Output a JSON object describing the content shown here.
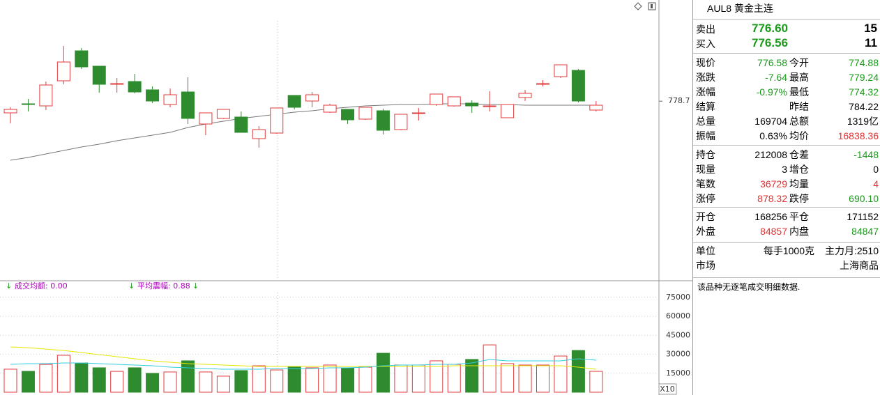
{
  "chart_data": [
    {
      "type": "candlestick",
      "ylim": [
        715,
        815
      ],
      "yticks": [
        778.7
      ],
      "up_color": "#e03a3a",
      "down_color": "#2e8b2e",
      "series": {
        "open": [
          774.5,
          777.75,
          777,
          786,
          796.75,
          791.25,
          784.75,
          785.75,
          782.75,
          777.5,
          782,
          770.5,
          772.5,
          773,
          765.25,
          767.25,
          780.75,
          778.75,
          774.75,
          775.75,
          772.25,
          775.25,
          768.5,
          774.25,
          777.5,
          777,
          778,
          776.75,
          772.75,
          780,
          784.75,
          787.5,
          789.75,
          775.5
        ],
        "high": [
          776.5,
          779.5,
          785.75,
          798.5,
          797.75,
          791.25,
          787,
          788.5,
          784,
          783.25,
          787.25,
          774.5,
          775.75,
          775,
          769.75,
          776.25,
          780.75,
          782,
          777.75,
          775.75,
          776.5,
          776,
          774,
          776.25,
          781.25,
          780.25,
          779,
          782.25,
          777.5,
          782.75,
          786.25,
          791.75,
          790.25,
          778.75
        ],
        "low": [
          770.75,
          775,
          775.5,
          784.75,
          790.25,
          781.75,
          781.75,
          781.5,
          778,
          776.5,
          770.5,
          766.5,
          772.25,
          767.5,
          762,
          767,
          775.75,
          776.5,
          774.5,
          770.5,
          772,
          766.75,
          768.25,
          771.75,
          777,
          776.75,
          774.5,
          775,
          772.75,
          778.75,
          784,
          787,
          778.25,
          775
        ],
        "close": [
          775.75,
          777.5,
          784.5,
          792.75,
          791,
          784.75,
          785,
          782,
          778.75,
          781,
          772.5,
          774.5,
          775.75,
          767.5,
          768.5,
          776.25,
          776.5,
          781,
          777.25,
          772,
          776.5,
          768.25,
          774,
          774.5,
          781.25,
          780.25,
          777,
          777,
          777.5,
          781.5,
          785,
          791.75,
          778.75,
          777.25
        ]
      },
      "lines": [
        {
          "color": "#777777",
          "values": [
            757.5,
            758.5,
            759.75,
            761,
            762.25,
            763.25,
            764.5,
            765.5,
            766.5,
            767.5,
            769.25,
            770.5,
            771.5,
            772.5,
            773.25,
            774,
            774.75,
            775.25,
            776,
            776.5,
            777,
            777.25,
            777.5,
            777.5,
            777.75,
            777.75,
            777.75,
            777.5,
            777.5,
            777.25,
            777.25,
            777.25,
            777.25,
            777.25
          ]
        }
      ]
    },
    {
      "type": "bar",
      "ylim": [
        0,
        87000
      ],
      "yticks": [
        15000,
        30000,
        45000,
        60000,
        75000
      ],
      "indicators": [
        "成交均额: 0.00",
        "平均震幅: 0.88"
      ],
      "scale_label": "X10",
      "values": [
        18200,
        16500,
        22000,
        29200,
        23100,
        19300,
        16500,
        19300,
        14900,
        16000,
        24800,
        16000,
        12700,
        17100,
        20900,
        17600,
        20400,
        19300,
        21500,
        19300,
        19800,
        30800,
        21500,
        21500,
        24800,
        22000,
        25900,
        37400,
        22600,
        21500,
        21500,
        28600,
        33000,
        16500
      ],
      "series": [
        {
          "color": "#e6e600",
          "values": [
            35800,
            35200,
            34100,
            33000,
            31400,
            29700,
            28100,
            26400,
            24800,
            23700,
            22600,
            22000,
            21500,
            20900,
            20400,
            20400,
            20400,
            20400,
            20400,
            20400,
            20400,
            20400,
            20400,
            20400,
            20400,
            20900,
            20900,
            20900,
            20900,
            20900,
            20900,
            20900,
            19800,
            18200
          ]
        },
        {
          "color": "#33ccdd",
          "values": [
            22000,
            22600,
            22600,
            23100,
            23100,
            22600,
            22000,
            21500,
            20900,
            19800,
            19300,
            18700,
            18200,
            18200,
            18200,
            18700,
            18700,
            18700,
            19300,
            19300,
            19800,
            20900,
            21500,
            21500,
            22000,
            22000,
            23100,
            25900,
            24800,
            24800,
            24800,
            24800,
            26400,
            25300
          ]
        }
      ]
    }
  ],
  "quote": {
    "title": "AUL8 黄金主连",
    "orders": [
      {
        "label": "卖出",
        "price": "776.60",
        "volume": "15",
        "color": "#1a9a1a"
      },
      {
        "label": "买入",
        "price": "776.56",
        "volume": "11",
        "color": "#1a9a1a"
      }
    ],
    "sections": [
      [
        [
          {
            "label": "现价",
            "value": "776.58",
            "color": "#1a9a1a"
          },
          {
            "label": "今开",
            "value": "774.88",
            "color": "#1a9a1a"
          }
        ],
        [
          {
            "label": "涨跌",
            "value": "-7.64",
            "color": "#1a9a1a"
          },
          {
            "label": "最高",
            "value": "779.24",
            "color": "#1a9a1a"
          }
        ],
        [
          {
            "label": "涨幅",
            "value": "-0.97%",
            "color": "#1a9a1a"
          },
          {
            "label": "最低",
            "value": "774.32",
            "color": "#1a9a1a"
          }
        ],
        [
          {
            "label": "结算"
          },
          {
            "label": "昨结",
            "value": "784.22",
            "color": "#000000"
          }
        ],
        [
          {
            "label": "总量",
            "value": "169704",
            "color": "#000000"
          },
          {
            "label": "总额",
            "value": "1319亿",
            "color": "#000000"
          }
        ],
        [
          {
            "label": "振幅",
            "value": "0.63%",
            "color": "#000000"
          },
          {
            "label": "均价",
            "value": "16838.36",
            "color": "#e03030"
          }
        ]
      ],
      [
        [
          {
            "label": "持仓",
            "value": "212008",
            "color": "#000000"
          },
          {
            "label": "仓差",
            "value": "-1448",
            "color": "#1a9a1a"
          }
        ],
        [
          {
            "label": "现量",
            "value": "3",
            "color": "#000000"
          },
          {
            "label": "增仓",
            "value": "0",
            "color": "#000000"
          }
        ],
        [
          {
            "label": "笔数",
            "value": "36729",
            "color": "#e03030"
          },
          {
            "label": "均量",
            "value": "4",
            "color": "#e03030"
          }
        ],
        [
          {
            "label": "涨停",
            "value": "878.32",
            "color": "#e03030"
          },
          {
            "label": "跌停",
            "value": "690.10",
            "color": "#1a9a1a"
          }
        ]
      ],
      [
        [
          {
            "label": "开仓",
            "value": "168256",
            "color": "#000000"
          },
          {
            "label": "平仓",
            "value": "171152",
            "color": "#000000"
          }
        ],
        [
          {
            "label": "外盘",
            "value": "84857",
            "color": "#e03030"
          },
          {
            "label": "内盘",
            "value": "84847",
            "color": "#1a9a1a"
          }
        ]
      ],
      [
        [
          {
            "label": "单位",
            "value": "每手1000克",
            "color": "#000000"
          },
          {
            "value": "主力月:2510",
            "color": "#000000"
          }
        ],
        [
          {
            "label": "市场"
          },
          {
            "value": "上海商品",
            "color": "#000000"
          }
        ]
      ]
    ],
    "note": "该品种无逐笔成交明细数据."
  }
}
